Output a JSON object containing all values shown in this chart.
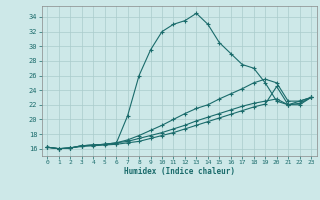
{
  "xlabel": "Humidex (Indice chaleur)",
  "ylabel": "",
  "xlim": [
    -0.5,
    23.5
  ],
  "ylim": [
    15,
    35.5
  ],
  "yticks": [
    16,
    18,
    20,
    22,
    24,
    26,
    28,
    30,
    32,
    34
  ],
  "xticks": [
    0,
    1,
    2,
    3,
    4,
    5,
    6,
    7,
    8,
    9,
    10,
    11,
    12,
    13,
    14,
    15,
    16,
    17,
    18,
    19,
    20,
    21,
    22,
    23
  ],
  "bg_color": "#cde8e8",
  "line_color": "#1a6b6b",
  "grid_color": "#aacccc",
  "line1_x": [
    0,
    1,
    2,
    3,
    4,
    5,
    6,
    7,
    8,
    9,
    10,
    11,
    12,
    13,
    14,
    15,
    16,
    17,
    18,
    19,
    20,
    21,
    22,
    23
  ],
  "line1_y": [
    16.2,
    16.0,
    16.1,
    16.4,
    16.5,
    16.6,
    16.7,
    20.5,
    26.0,
    29.5,
    32.0,
    33.0,
    33.5,
    34.5,
    33.0,
    30.5,
    29.0,
    27.5,
    27.0,
    25.0,
    22.5,
    22.0,
    22.5,
    23.0
  ],
  "line2_x": [
    0,
    1,
    2,
    3,
    4,
    5,
    6,
    7,
    8,
    9,
    10,
    11,
    12,
    13,
    14,
    15,
    16,
    17,
    18,
    19,
    20,
    21,
    22,
    23
  ],
  "line2_y": [
    16.2,
    16.0,
    16.1,
    16.4,
    16.5,
    16.6,
    16.8,
    17.2,
    17.8,
    18.5,
    19.2,
    20.0,
    20.8,
    21.5,
    22.0,
    22.8,
    23.5,
    24.2,
    25.0,
    25.5,
    25.0,
    22.5,
    22.5,
    23.0
  ],
  "line3_x": [
    0,
    1,
    2,
    3,
    4,
    5,
    6,
    7,
    8,
    9,
    10,
    11,
    12,
    13,
    14,
    15,
    16,
    17,
    18,
    19,
    20,
    21,
    22,
    23
  ],
  "line3_y": [
    16.2,
    16.0,
    16.1,
    16.4,
    16.5,
    16.6,
    16.8,
    17.0,
    17.4,
    17.8,
    18.2,
    18.7,
    19.2,
    19.8,
    20.3,
    20.8,
    21.3,
    21.8,
    22.2,
    22.5,
    22.8,
    22.0,
    22.2,
    23.0
  ],
  "line4_x": [
    0,
    1,
    2,
    3,
    4,
    5,
    6,
    7,
    8,
    9,
    10,
    11,
    12,
    13,
    14,
    15,
    16,
    17,
    18,
    19,
    20,
    21,
    22,
    23
  ],
  "line4_y": [
    16.2,
    16.0,
    16.1,
    16.3,
    16.4,
    16.5,
    16.6,
    16.8,
    17.0,
    17.4,
    17.8,
    18.2,
    18.7,
    19.2,
    19.7,
    20.2,
    20.7,
    21.2,
    21.7,
    22.1,
    24.5,
    22.0,
    22.0,
    23.0
  ]
}
